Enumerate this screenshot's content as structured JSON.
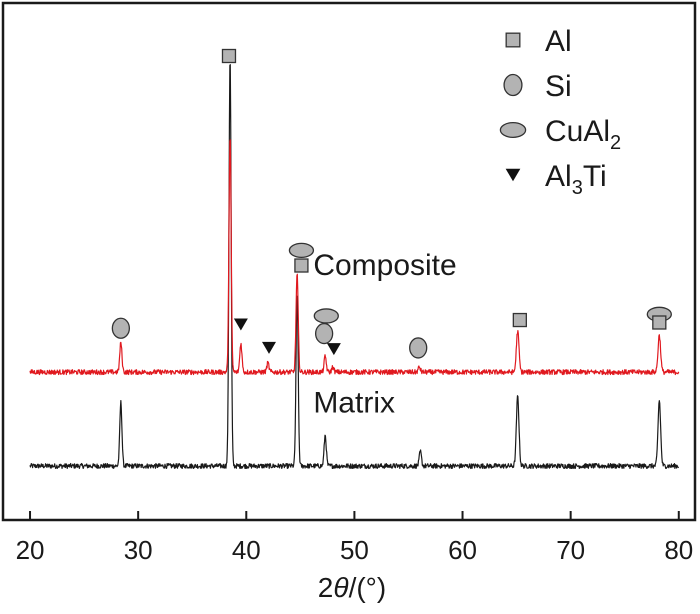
{
  "chart_data": {
    "type": "line",
    "title": "",
    "xlabel": "2θ/(°)",
    "xlabel_parts": {
      "prefix": "2",
      "var": "θ",
      "suffix": "/(°)"
    },
    "ylabel": "",
    "xlim": [
      17.5,
      81.5
    ],
    "x_ticks": [
      20,
      30,
      40,
      50,
      60,
      70,
      80
    ],
    "y_ticks_shown": false,
    "grid": false,
    "legend_position": "top-right",
    "colors": {
      "matrix": "#1a1a1a",
      "composite": "#e0191f",
      "marker_fill": "#b3b3b3",
      "marker_stroke": "#333333"
    },
    "legend": [
      {
        "symbol": "square",
        "text": "Al",
        "sub": "",
        "tail": ""
      },
      {
        "symbol": "circle",
        "text": "Si",
        "sub": "",
        "tail": ""
      },
      {
        "symbol": "ellipse",
        "text": "CuAl",
        "sub": "2",
        "tail": ""
      },
      {
        "symbol": "triangle-down",
        "text": "Al",
        "sub": "3",
        "tail": "Ti"
      }
    ],
    "series": [
      {
        "name": "Matrix",
        "baseline": 0.0,
        "peaks": [
          {
            "x": 28.4,
            "height": 0.155,
            "width": 0.1
          },
          {
            "x": 38.5,
            "height": 1.0,
            "width": 0.1
          },
          {
            "x": 44.7,
            "height": 0.42,
            "width": 0.1
          },
          {
            "x": 47.3,
            "height": 0.075,
            "width": 0.1
          },
          {
            "x": 56.1,
            "height": 0.035,
            "width": 0.1
          },
          {
            "x": 65.1,
            "height": 0.17,
            "width": 0.12
          },
          {
            "x": 78.2,
            "height": 0.16,
            "width": 0.12
          }
        ]
      },
      {
        "name": "Composite",
        "baseline": 0.229,
        "peaks": [
          {
            "x": 28.4,
            "height": 0.072,
            "width": 0.1
          },
          {
            "x": 38.5,
            "height": 0.579,
            "width": 0.1
          },
          {
            "x": 39.5,
            "height": 0.07,
            "width": 0.1
          },
          {
            "x": 42.0,
            "height": 0.022,
            "width": 0.1
          },
          {
            "x": 44.7,
            "height": 0.238,
            "width": 0.1
          },
          {
            "x": 47.3,
            "height": 0.038,
            "width": 0.1
          },
          {
            "x": 48.0,
            "height": 0.012,
            "width": 0.1
          },
          {
            "x": 56.0,
            "height": 0.012,
            "width": 0.1
          },
          {
            "x": 65.1,
            "height": 0.1,
            "width": 0.12
          },
          {
            "x": 78.2,
            "height": 0.09,
            "width": 0.12
          }
        ]
      }
    ],
    "annotations": [
      {
        "x": 28.4,
        "y": 0.336,
        "symbol": "circle"
      },
      {
        "x": 38.4,
        "y": 1.0,
        "symbol": "square"
      },
      {
        "x": 39.5,
        "y": 0.345,
        "symbol": "triangle-down"
      },
      {
        "x": 42.1,
        "y": 0.288,
        "symbol": "triangle-down"
      },
      {
        "x": 45.1,
        "y": 0.526,
        "symbol": "ellipse"
      },
      {
        "x": 45.1,
        "y": 0.489,
        "symbol": "square"
      },
      {
        "x": 47.4,
        "y": 0.366,
        "symbol": "ellipse"
      },
      {
        "x": 47.2,
        "y": 0.323,
        "symbol": "circle"
      },
      {
        "x": 48.1,
        "y": 0.285,
        "symbol": "triangle-down"
      },
      {
        "x": 55.9,
        "y": 0.288,
        "symbol": "circle"
      },
      {
        "x": 65.3,
        "y": 0.356,
        "symbol": "square"
      },
      {
        "x": 78.2,
        "y": 0.37,
        "symbol": "ellipse"
      },
      {
        "x": 78.2,
        "y": 0.35,
        "symbol": "square"
      }
    ],
    "series_labels": [
      {
        "text": "Composite",
        "x": 46.2,
        "y": 0.49
      },
      {
        "text": "Matrix",
        "x": 46.2,
        "y": 0.155
      }
    ]
  }
}
